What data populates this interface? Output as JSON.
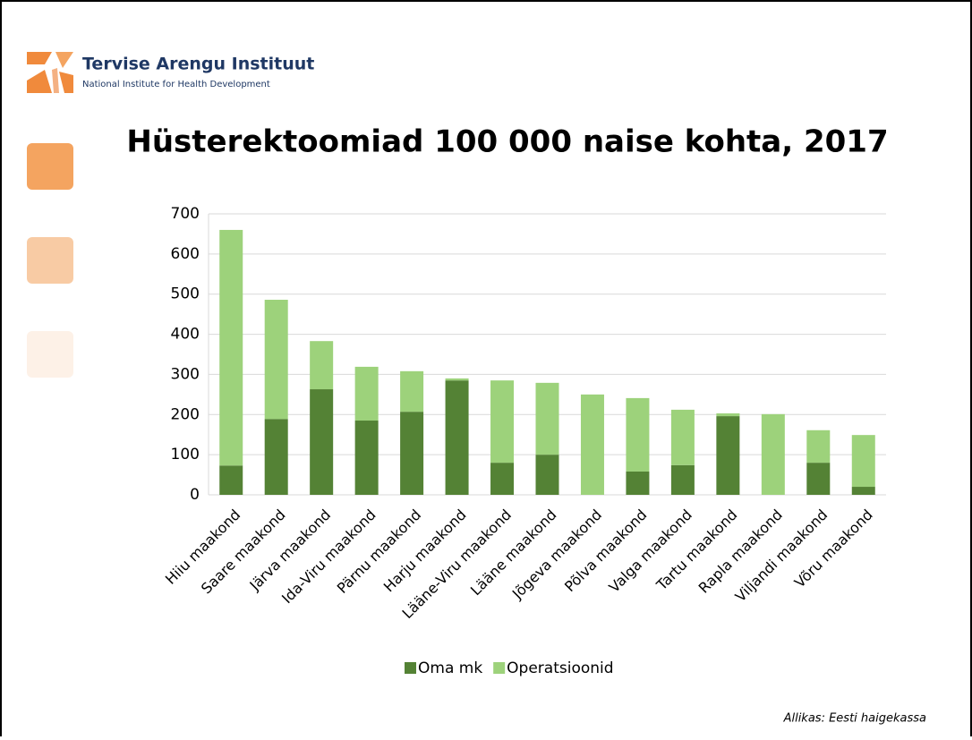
{
  "header": {
    "logo_name": "Tervise Arengu Instituut",
    "logo_subtitle": "National Institute for Health Development"
  },
  "chart_data": {
    "type": "stacked_bar",
    "title": "Hüsterektoomiad 100 000 naise kohta, 2017",
    "categories": [
      "Hiiu maakond",
      "Saare maakond",
      "Järva maakond",
      "Ida-Viru maakond",
      "Pärnu maakond",
      "Harju maakond",
      "Lääne-Viru maakond",
      "Lääne maakond",
      "Jõgeva maakond",
      "Põlva maakond",
      "Valga maakond",
      "Tartu maakond",
      "Rapla maakond",
      "Viljandi maakond",
      "Võru maakond"
    ],
    "series": [
      {
        "name": "Oma mk",
        "color": "#548235",
        "values": [
          73,
          189,
          263,
          185,
          207,
          285,
          80,
          100,
          0,
          58,
          74,
          196,
          0,
          80,
          20
        ]
      },
      {
        "name": "Operatsioonid",
        "color": "#9dd27b",
        "values": [
          587,
          297,
          120,
          134,
          101,
          5,
          205,
          179,
          250,
          183,
          138,
          7,
          201,
          81,
          129
        ]
      }
    ],
    "ylim": [
      0,
      700
    ],
    "yticks": [
      0,
      100,
      200,
      300,
      400,
      500,
      600,
      700
    ],
    "grid": true,
    "legend": "bottom"
  },
  "source": "Allikas: Eesti haigekassa"
}
